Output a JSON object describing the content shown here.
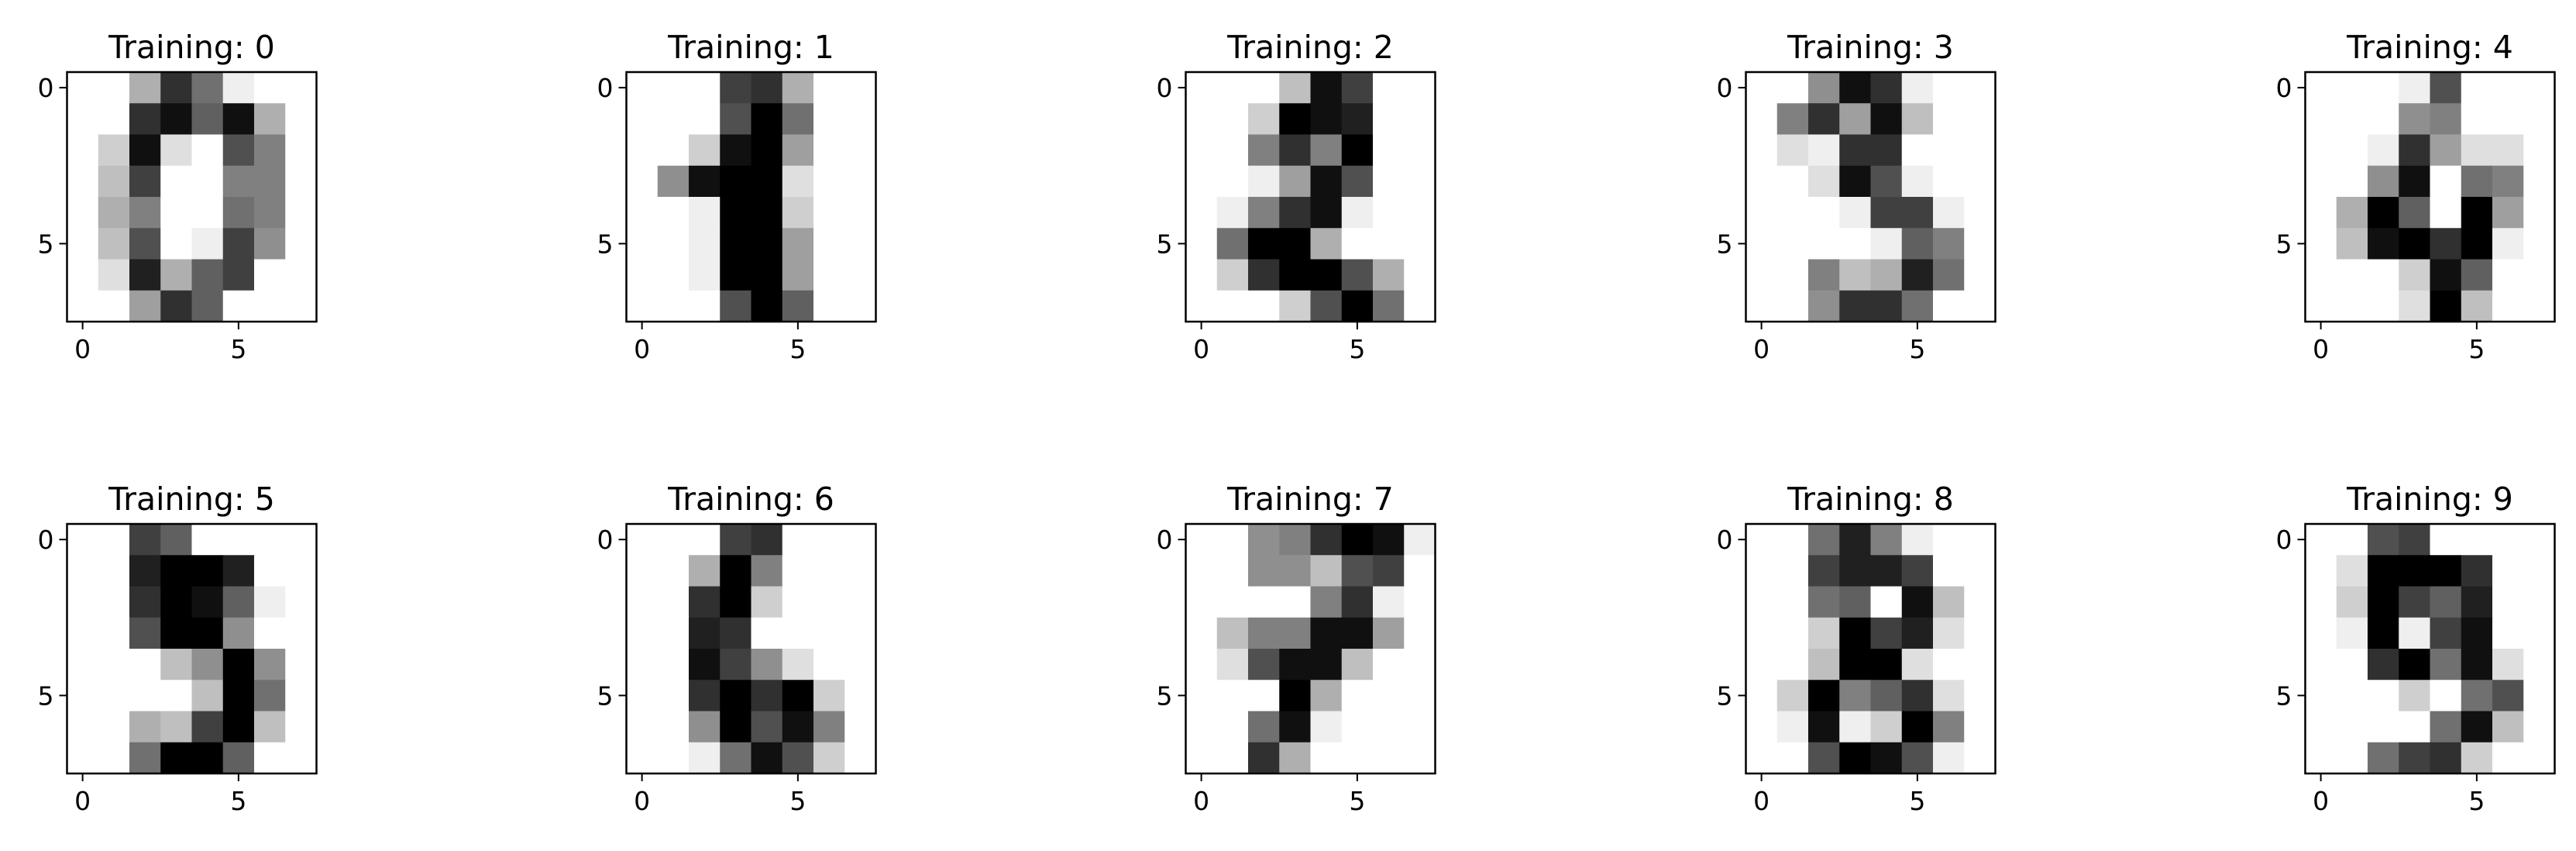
{
  "figure": {
    "background": "#ffffff",
    "colormap": "gray_r",
    "value_range": [
      0,
      16
    ]
  },
  "chart_data": [
    {
      "type": "heatmap",
      "title": "Training: 0",
      "xticks": [
        "0",
        "5"
      ],
      "yticks": [
        "0",
        "5"
      ],
      "values": [
        [
          0,
          0,
          5,
          13,
          9,
          1,
          0,
          0
        ],
        [
          0,
          0,
          13,
          15,
          10,
          15,
          5,
          0
        ],
        [
          0,
          3,
          15,
          2,
          0,
          11,
          8,
          0
        ],
        [
          0,
          4,
          12,
          0,
          0,
          8,
          8,
          0
        ],
        [
          0,
          5,
          8,
          0,
          0,
          9,
          8,
          0
        ],
        [
          0,
          4,
          11,
          0,
          1,
          12,
          7,
          0
        ],
        [
          0,
          2,
          14,
          5,
          10,
          12,
          0,
          0
        ],
        [
          0,
          0,
          6,
          13,
          10,
          0,
          0,
          0
        ]
      ]
    },
    {
      "type": "heatmap",
      "title": "Training: 1",
      "xticks": [
        "0",
        "5"
      ],
      "yticks": [
        "0",
        "5"
      ],
      "values": [
        [
          0,
          0,
          0,
          12,
          13,
          5,
          0,
          0
        ],
        [
          0,
          0,
          0,
          11,
          16,
          9,
          0,
          0
        ],
        [
          0,
          0,
          3,
          15,
          16,
          6,
          0,
          0
        ],
        [
          0,
          7,
          15,
          16,
          16,
          2,
          0,
          0
        ],
        [
          0,
          0,
          1,
          16,
          16,
          3,
          0,
          0
        ],
        [
          0,
          0,
          1,
          16,
          16,
          6,
          0,
          0
        ],
        [
          0,
          0,
          1,
          16,
          16,
          6,
          0,
          0
        ],
        [
          0,
          0,
          0,
          11,
          16,
          10,
          0,
          0
        ]
      ]
    },
    {
      "type": "heatmap",
      "title": "Training: 2",
      "xticks": [
        "0",
        "5"
      ],
      "yticks": [
        "0",
        "5"
      ],
      "values": [
        [
          0,
          0,
          0,
          4,
          15,
          12,
          0,
          0
        ],
        [
          0,
          0,
          3,
          16,
          15,
          14,
          0,
          0
        ],
        [
          0,
          0,
          8,
          13,
          8,
          16,
          0,
          0
        ],
        [
          0,
          0,
          1,
          6,
          15,
          11,
          0,
          0
        ],
        [
          0,
          1,
          8,
          13,
          15,
          1,
          0,
          0
        ],
        [
          0,
          9,
          16,
          16,
          5,
          0,
          0,
          0
        ],
        [
          0,
          3,
          13,
          16,
          16,
          11,
          5,
          0
        ],
        [
          0,
          0,
          0,
          3,
          11,
          16,
          9,
          0
        ]
      ]
    },
    {
      "type": "heatmap",
      "title": "Training: 3",
      "xticks": [
        "0",
        "5"
      ],
      "yticks": [
        "0",
        "5"
      ],
      "values": [
        [
          0,
          0,
          7,
          15,
          13,
          1,
          0,
          0
        ],
        [
          0,
          8,
          13,
          6,
          15,
          4,
          0,
          0
        ],
        [
          0,
          2,
          1,
          13,
          13,
          0,
          0,
          0
        ],
        [
          0,
          0,
          2,
          15,
          11,
          1,
          0,
          0
        ],
        [
          0,
          0,
          0,
          1,
          12,
          12,
          1,
          0
        ],
        [
          0,
          0,
          0,
          0,
          1,
          10,
          8,
          0
        ],
        [
          0,
          0,
          8,
          4,
          5,
          14,
          9,
          0
        ],
        [
          0,
          0,
          7,
          13,
          13,
          9,
          0,
          0
        ]
      ]
    },
    {
      "type": "heatmap",
      "title": "Training: 4",
      "xticks": [
        "0",
        "5"
      ],
      "yticks": [
        "0",
        "5"
      ],
      "values": [
        [
          0,
          0,
          0,
          1,
          11,
          0,
          0,
          0
        ],
        [
          0,
          0,
          0,
          7,
          8,
          0,
          0,
          0
        ],
        [
          0,
          0,
          1,
          13,
          6,
          2,
          2,
          0
        ],
        [
          0,
          0,
          7,
          15,
          0,
          9,
          8,
          0
        ],
        [
          0,
          5,
          16,
          10,
          0,
          16,
          6,
          0
        ],
        [
          0,
          4,
          15,
          16,
          13,
          16,
          1,
          0
        ],
        [
          0,
          0,
          0,
          3,
          15,
          10,
          0,
          0
        ],
        [
          0,
          0,
          0,
          2,
          16,
          4,
          0,
          0
        ]
      ]
    },
    {
      "type": "heatmap",
      "title": "Training: 5",
      "xticks": [
        "0",
        "5"
      ],
      "yticks": [
        "0",
        "5"
      ],
      "values": [
        [
          0,
          0,
          12,
          10,
          0,
          0,
          0,
          0
        ],
        [
          0,
          0,
          14,
          16,
          16,
          14,
          0,
          0
        ],
        [
          0,
          0,
          13,
          16,
          15,
          10,
          1,
          0
        ],
        [
          0,
          0,
          11,
          16,
          16,
          7,
          0,
          0
        ],
        [
          0,
          0,
          0,
          4,
          7,
          16,
          7,
          0
        ],
        [
          0,
          0,
          0,
          0,
          4,
          16,
          9,
          0
        ],
        [
          0,
          0,
          5,
          4,
          12,
          16,
          4,
          0
        ],
        [
          0,
          0,
          9,
          16,
          16,
          10,
          0,
          0
        ]
      ]
    },
    {
      "type": "heatmap",
      "title": "Training: 6",
      "xticks": [
        "0",
        "5"
      ],
      "yticks": [
        "0",
        "5"
      ],
      "values": [
        [
          0,
          0,
          0,
          12,
          13,
          0,
          0,
          0
        ],
        [
          0,
          0,
          5,
          16,
          8,
          0,
          0,
          0
        ],
        [
          0,
          0,
          13,
          16,
          3,
          0,
          0,
          0
        ],
        [
          0,
          0,
          14,
          13,
          0,
          0,
          0,
          0
        ],
        [
          0,
          0,
          15,
          12,
          7,
          2,
          0,
          0
        ],
        [
          0,
          0,
          13,
          16,
          13,
          16,
          3,
          0
        ],
        [
          0,
          0,
          7,
          16,
          11,
          15,
          8,
          0
        ],
        [
          0,
          0,
          1,
          9,
          15,
          11,
          3,
          0
        ]
      ]
    },
    {
      "type": "heatmap",
      "title": "Training: 7",
      "xticks": [
        "0",
        "5"
      ],
      "yticks": [
        "0",
        "5"
      ],
      "values": [
        [
          0,
          0,
          7,
          8,
          13,
          16,
          15,
          1
        ],
        [
          0,
          0,
          7,
          7,
          4,
          11,
          12,
          0
        ],
        [
          0,
          0,
          0,
          0,
          8,
          13,
          1,
          0
        ],
        [
          0,
          4,
          8,
          8,
          15,
          15,
          6,
          0
        ],
        [
          0,
          2,
          11,
          15,
          15,
          4,
          0,
          0
        ],
        [
          0,
          0,
          0,
          16,
          5,
          0,
          0,
          0
        ],
        [
          0,
          0,
          9,
          15,
          1,
          0,
          0,
          0
        ],
        [
          0,
          0,
          13,
          5,
          0,
          0,
          0,
          0
        ]
      ]
    },
    {
      "type": "heatmap",
      "title": "Training: 8",
      "xticks": [
        "0",
        "5"
      ],
      "yticks": [
        "0",
        "5"
      ],
      "values": [
        [
          0,
          0,
          9,
          14,
          8,
          1,
          0,
          0
        ],
        [
          0,
          0,
          12,
          14,
          14,
          12,
          0,
          0
        ],
        [
          0,
          0,
          9,
          10,
          0,
          15,
          4,
          0
        ],
        [
          0,
          0,
          3,
          16,
          12,
          14,
          2,
          0
        ],
        [
          0,
          0,
          4,
          16,
          16,
          2,
          0,
          0
        ],
        [
          0,
          3,
          16,
          8,
          10,
          13,
          2,
          0
        ],
        [
          0,
          1,
          15,
          1,
          3,
          16,
          8,
          0
        ],
        [
          0,
          0,
          11,
          16,
          15,
          11,
          1,
          0
        ]
      ]
    },
    {
      "type": "heatmap",
      "title": "Training: 9",
      "xticks": [
        "0",
        "5"
      ],
      "yticks": [
        "0",
        "5"
      ],
      "values": [
        [
          0,
          0,
          11,
          12,
          0,
          0,
          0,
          0
        ],
        [
          0,
          2,
          16,
          16,
          16,
          13,
          0,
          0
        ],
        [
          0,
          3,
          16,
          12,
          10,
          14,
          0,
          0
        ],
        [
          0,
          1,
          16,
          1,
          12,
          15,
          0,
          0
        ],
        [
          0,
          0,
          13,
          16,
          9,
          15,
          2,
          0
        ],
        [
          0,
          0,
          0,
          3,
          0,
          9,
          11,
          0
        ],
        [
          0,
          0,
          0,
          0,
          9,
          15,
          4,
          0
        ],
        [
          0,
          0,
          9,
          12,
          13,
          3,
          0,
          0
        ]
      ]
    }
  ]
}
